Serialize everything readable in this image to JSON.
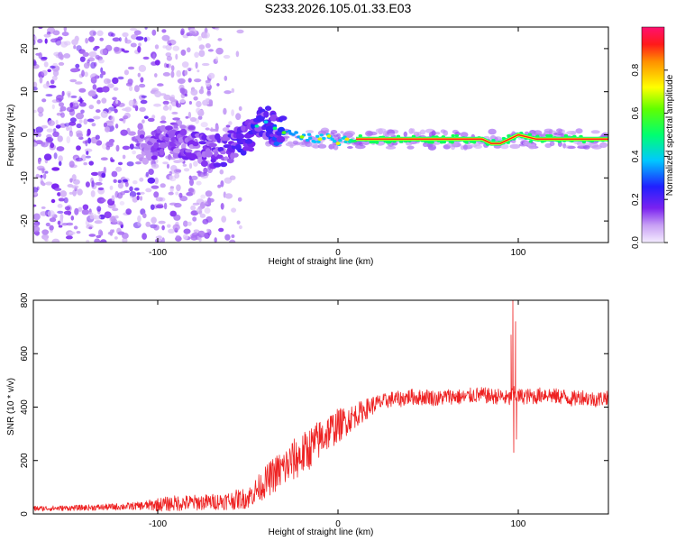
{
  "title": "S233.2026.105.01.33.E03",
  "chart_data": [
    {
      "type": "heatmap",
      "title": "S233.2026.105.01.33.E03",
      "xlabel": "Height of straight line (km)",
      "ylabel": "Frequency (Hz)",
      "xlim": [
        -169,
        150
      ],
      "ylim": [
        -25,
        25
      ],
      "x_ticks": [
        -100,
        0,
        100
      ],
      "x_tick_labels": [
        "-100",
        "0",
        "100"
      ],
      "y_ticks": [
        -20,
        -10,
        0,
        10,
        20
      ],
      "y_tick_labels": [
        "-20",
        "-10",
        "0",
        "10",
        "20"
      ],
      "colorbar": {
        "label": "Normalized spectral amplitude",
        "range": [
          0,
          1
        ],
        "ticks": [
          0.0,
          0.2,
          0.4,
          0.6,
          0.8
        ],
        "tick_labels": [
          "0.0",
          "0.2",
          "0.4",
          "0.6",
          "0.8"
        ]
      },
      "ridge": [
        {
          "x": -110,
          "y": -3,
          "amp": 0.25
        },
        {
          "x": -100,
          "y": -2,
          "amp": 0.3
        },
        {
          "x": -90,
          "y": -1.5,
          "amp": 0.3
        },
        {
          "x": -80,
          "y": -2,
          "amp": 0.3
        },
        {
          "x": -70,
          "y": -4,
          "amp": 0.3
        },
        {
          "x": -60,
          "y": -3,
          "amp": 0.35
        },
        {
          "x": -55,
          "y": -2,
          "amp": 0.4
        },
        {
          "x": -50,
          "y": -0.5,
          "amp": 0.4
        },
        {
          "x": -45,
          "y": 2,
          "amp": 0.45
        },
        {
          "x": -40,
          "y": 3,
          "amp": 0.4
        },
        {
          "x": -35,
          "y": 1.5,
          "amp": 0.5
        },
        {
          "x": -30,
          "y": 0.5,
          "amp": 0.6
        },
        {
          "x": -20,
          "y": -0.5,
          "amp": 0.65
        },
        {
          "x": -10,
          "y": -1,
          "amp": 0.7
        },
        {
          "x": -5,
          "y": -0.3,
          "amp": 0.7
        },
        {
          "x": 0,
          "y": -2,
          "amp": 0.7
        },
        {
          "x": 5,
          "y": -1,
          "amp": 0.75
        },
        {
          "x": 10,
          "y": -1,
          "amp": 0.95
        },
        {
          "x": 50,
          "y": -1,
          "amp": 0.95
        },
        {
          "x": 80,
          "y": -1,
          "amp": 0.95
        },
        {
          "x": 85,
          "y": -2,
          "amp": 0.9
        },
        {
          "x": 90,
          "y": -2,
          "amp": 0.9
        },
        {
          "x": 95,
          "y": -1,
          "amp": 0.95
        },
        {
          "x": 100,
          "y": 0,
          "amp": 0.9
        },
        {
          "x": 110,
          "y": -1,
          "amp": 0.95
        },
        {
          "x": 150,
          "y": -1,
          "amp": 0.95
        }
      ]
    },
    {
      "type": "line",
      "xlabel": "Height of straight line (km)",
      "ylabel": "SNR (10 * v/v)",
      "xlim": [
        -169,
        150
      ],
      "ylim": [
        0,
        800
      ],
      "x_ticks": [
        -100,
        0,
        100
      ],
      "x_tick_labels": [
        "-100",
        "0",
        "100"
      ],
      "y_ticks": [
        0,
        200,
        400,
        600,
        800
      ],
      "y_tick_labels": [
        "0",
        "200",
        "400",
        "600",
        "800"
      ],
      "series": [
        {
          "name": "SNR",
          "color": "#ee2222",
          "x": [
            -169,
            -150,
            -130,
            -110,
            -100,
            -90,
            -80,
            -70,
            -60,
            -50,
            -45,
            -40,
            -35,
            -30,
            -25,
            -20,
            -15,
            -10,
            -5,
            0,
            5,
            10,
            15,
            20,
            25,
            30,
            35,
            40,
            45,
            50,
            55,
            60,
            65,
            70,
            75,
            80,
            85,
            90,
            95,
            97,
            100,
            105,
            110,
            115,
            120,
            125,
            130,
            135,
            140,
            145,
            150
          ],
          "y": [
            20,
            22,
            25,
            30,
            35,
            40,
            42,
            45,
            50,
            60,
            90,
            120,
            150,
            170,
            200,
            220,
            250,
            280,
            310,
            330,
            350,
            370,
            390,
            410,
            420,
            430,
            430,
            440,
            435,
            440,
            430,
            440,
            440,
            435,
            445,
            445,
            440,
            440,
            430,
            450,
            440,
            440,
            440,
            450,
            440,
            440,
            430,
            440,
            430,
            430,
            440
          ],
          "noise": [
            10,
            10,
            12,
            15,
            25,
            30,
            30,
            30,
            35,
            40,
            50,
            60,
            70,
            75,
            80,
            80,
            80,
            75,
            70,
            65,
            55,
            45,
            40,
            35,
            30,
            30,
            30,
            30,
            30,
            30,
            30,
            30,
            30,
            30,
            30,
            30,
            30,
            30,
            30,
            30,
            30,
            30,
            30,
            30,
            30,
            30,
            30,
            30,
            30,
            30,
            30
          ],
          "spikes": [
            {
              "x": 96,
              "y": 670
            },
            {
              "x": 97,
              "y": 800
            },
            {
              "x": 97.5,
              "y": 230
            },
            {
              "x": 98.5,
              "y": 720
            },
            {
              "x": 99,
              "y": 280
            }
          ]
        }
      ]
    }
  ]
}
